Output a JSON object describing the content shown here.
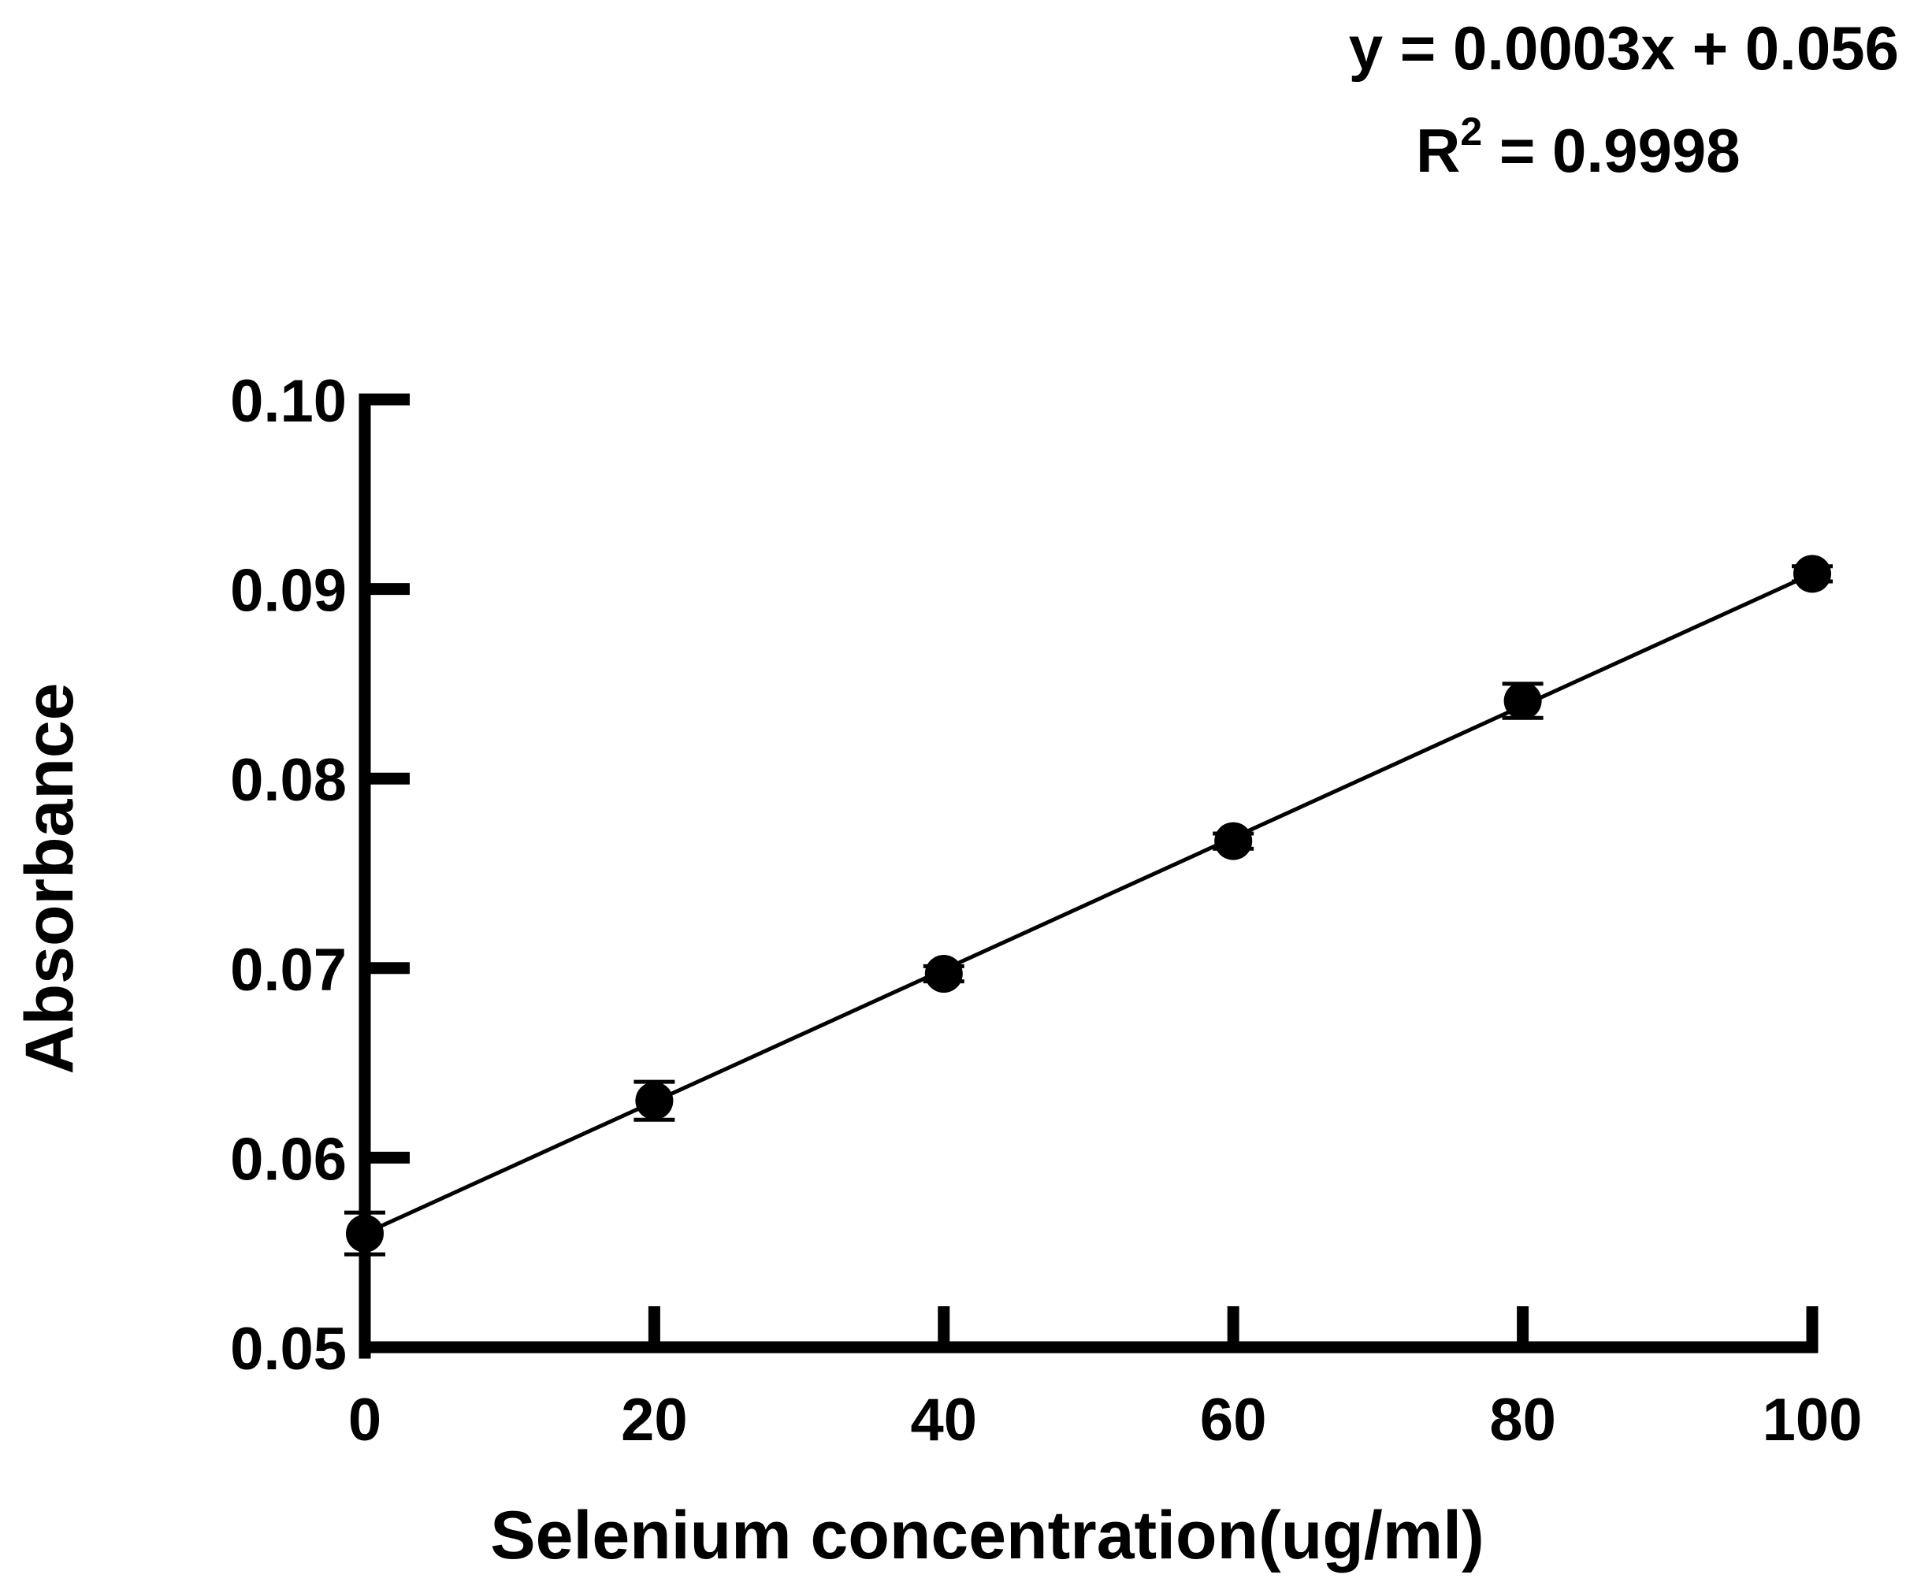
{
  "chart_data": {
    "type": "scatter",
    "equation": "y = 0.0003x + 0.056",
    "r2_prefix": "R",
    "r2_exponent": "2",
    "r2_value": " = 0.9998",
    "xlabel": "Selenium concentration(ug/ml)",
    "ylabel": "Absorbance",
    "xlim": [
      0,
      100
    ],
    "ylim": [
      0.05,
      0.1
    ],
    "x_ticks": [
      0,
      20,
      40,
      60,
      80,
      100
    ],
    "x_tick_labels": [
      "0",
      "20",
      "40",
      "60",
      "80",
      "100"
    ],
    "y_ticks": [
      0.05,
      0.06,
      0.07,
      0.08,
      0.09,
      0.1
    ],
    "y_tick_labels": [
      "0.05",
      "0.06",
      "0.07",
      "0.08",
      "0.09",
      "0.10"
    ],
    "series": [
      {
        "x": [
          0,
          20,
          40,
          60,
          80,
          100
        ],
        "y": [
          0.056,
          0.063,
          0.0697,
          0.0767,
          0.0841,
          0.0908
        ],
        "error": [
          0.0011,
          0.001,
          0.0004,
          0.0004,
          0.0009,
          0.0004
        ]
      }
    ],
    "trendline": {
      "slope": 0.000348,
      "intercept": 0.056,
      "x_range": [
        0,
        100
      ]
    },
    "grid": false,
    "color": "#000000"
  }
}
